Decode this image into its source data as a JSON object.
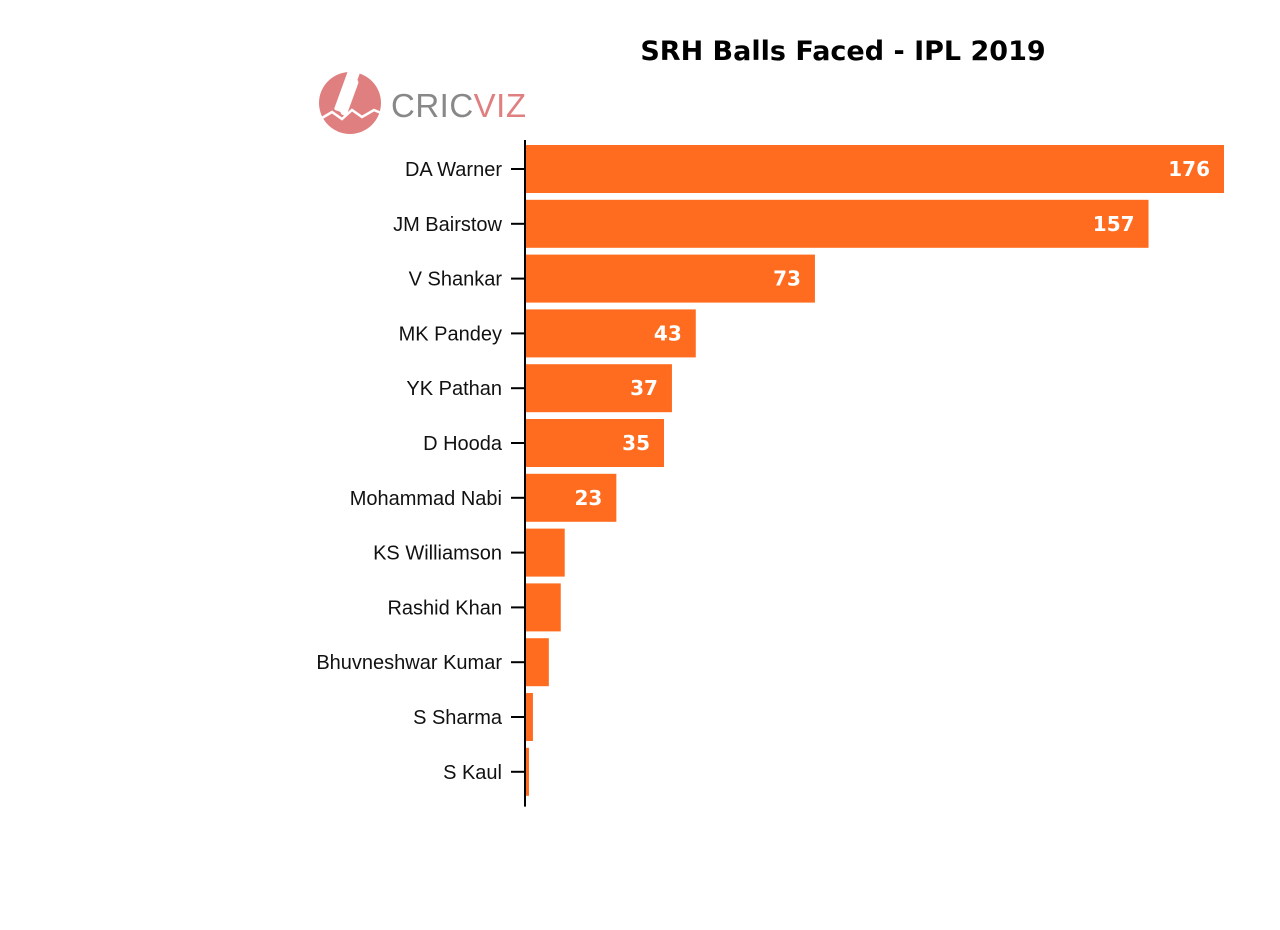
{
  "chart_data": {
    "type": "bar",
    "orientation": "horizontal",
    "title": "SRH Balls Faced - IPL 2019",
    "xlabel": "",
    "ylabel": "",
    "xlim": [
      0,
      176
    ],
    "grid": false,
    "legend": "none",
    "bar_color": "#FF6B1F",
    "categories": [
      "DA Warner",
      "JM Bairstow",
      "V Shankar",
      "MK Pandey",
      "YK Pathan",
      "D Hooda",
      "Mohammad Nabi",
      "KS Williamson",
      "Rashid Khan",
      "Bhuvneshwar Kumar",
      "S Sharma",
      "S Kaul"
    ],
    "values": [
      176,
      157,
      73,
      43,
      37,
      35,
      23,
      10,
      9,
      6,
      2,
      1
    ],
    "data_labels": [
      "176",
      "157",
      "73",
      "43",
      "37",
      "35",
      "23",
      "",
      "",
      "",
      "",
      ""
    ]
  },
  "logo": {
    "text_part1": "CRIC",
    "text_part2": "VIZ",
    "color_part1": "#888888",
    "color_part2": "#E07F80",
    "icon_color": "#E07F80",
    "icon": "cricket-bat-icon"
  }
}
